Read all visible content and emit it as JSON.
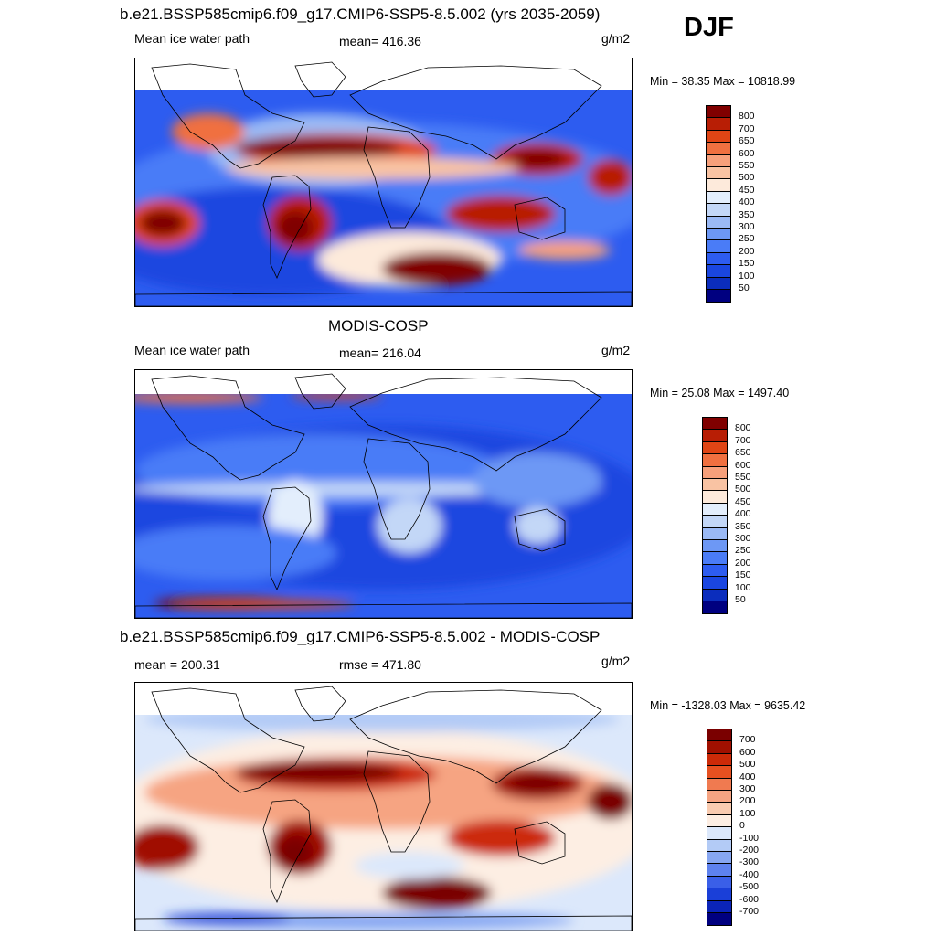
{
  "season": "DJF",
  "panels": [
    {
      "id": "model",
      "title": "b.e21.BSSP585cmip6.f09_g17.CMIP6-SSP5-8.5.002 (yrs 2035-2059)",
      "left_label": "Mean ice water path",
      "center_label": "mean= 416.36",
      "units": "g/m2",
      "minmax": "Min =  38.35 Max = 10818.99",
      "colorbar_labels": [
        "800",
        "700",
        "650",
        "600",
        "550",
        "500",
        "450",
        "400",
        "350",
        "300",
        "250",
        "200",
        "150",
        "100",
        "50"
      ]
    },
    {
      "id": "obs",
      "title": "MODIS-COSP",
      "left_label": "Mean ice water path",
      "center_label": "mean= 216.04",
      "units": "g/m2",
      "minmax": "Min =  25.08 Max = 1497.40",
      "colorbar_labels": [
        "800",
        "700",
        "650",
        "600",
        "550",
        "500",
        "450",
        "400",
        "350",
        "300",
        "250",
        "200",
        "150",
        "100",
        "50"
      ]
    },
    {
      "id": "diff",
      "title": "b.e21.BSSP585cmip6.f09_g17.CMIP6-SSP5-8.5.002 - MODIS-COSP",
      "left_label": "mean = 200.31",
      "center_label": "rmse = 471.80",
      "units": "g/m2",
      "minmax": "Min = -1328.03 Max = 9635.42",
      "colorbar_labels": [
        "700",
        "600",
        "500",
        "400",
        "300",
        "200",
        "100",
        "0",
        "-100",
        "-200",
        "-300",
        "-400",
        "-500",
        "-600",
        "-700"
      ]
    }
  ],
  "colors": {
    "abs_scale": [
      "#000080",
      "#0b2dbd",
      "#1a46e0",
      "#2d5cf0",
      "#4a7cf7",
      "#6d98f5",
      "#9ab9f5",
      "#c3d7f7",
      "#e3eefc",
      "#fdeadb",
      "#f9c3a3",
      "#f7a07b",
      "#f07040",
      "#e04515",
      "#b81e05",
      "#800000"
    ],
    "diff_scale": [
      "#000080",
      "#0b24b8",
      "#1a3fd8",
      "#3a5fe8",
      "#5e82ef",
      "#87a7f2",
      "#b3cbf6",
      "#dce8fb",
      "#fdeee3",
      "#f9cbb0",
      "#f6a482",
      "#f07a50",
      "#e65020",
      "#cc2a08",
      "#a01000",
      "#7a0000"
    ]
  }
}
